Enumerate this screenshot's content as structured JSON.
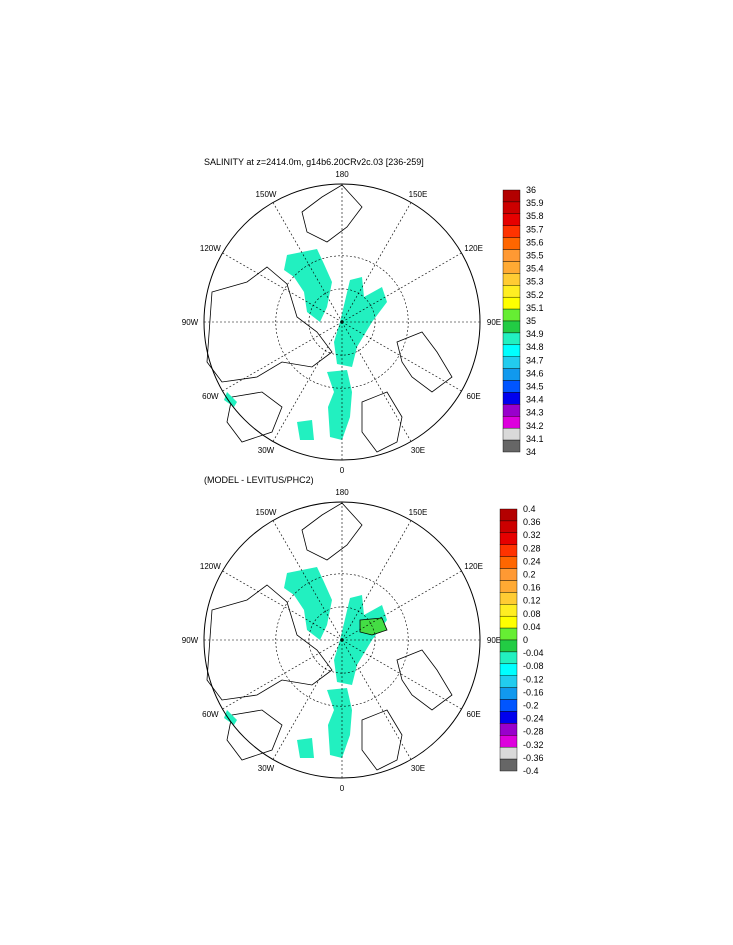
{
  "figure": {
    "panels": [
      {
        "id": "salinity",
        "title": "SALINITY at z=2414.0m, g14b6.20CRv2c.03 [236-259]",
        "projection": "north polar stereographic",
        "meridian_labels": [
          "180",
          "150E",
          "120E",
          "90E",
          "60E",
          "30E",
          "0",
          "30W",
          "60W",
          "90W",
          "120W",
          "150W"
        ],
        "colorbar": {
          "labels": [
            "36",
            "35.9",
            "35.8",
            "35.7",
            "35.6",
            "35.5",
            "35.4",
            "35.3",
            "35.2",
            "35.1",
            "35",
            "34.9",
            "34.8",
            "34.7",
            "34.6",
            "34.5",
            "34.4",
            "34.3",
            "34.2",
            "34.1",
            "34"
          ],
          "colors": [
            "#b30000",
            "#cc0000",
            "#e60000",
            "#ff3300",
            "#ff6600",
            "#ff9933",
            "#ffaa33",
            "#ffcc33",
            "#ffee22",
            "#ffff00",
            "#66ee33",
            "#22cc44",
            "#22f0c0",
            "#00ffff",
            "#22ccee",
            "#1199ee",
            "#0055ff",
            "#0000ee",
            "#9900cc",
            "#dd00dd",
            "#d9d9d9",
            "#666666"
          ]
        },
        "field_color": "#22f0c0"
      },
      {
        "id": "difference",
        "title": "(MODEL - LEVITUS/PHC2)",
        "projection": "north polar stereographic",
        "meridian_labels": [
          "180",
          "150E",
          "120E",
          "90E",
          "60E",
          "30E",
          "0",
          "30W",
          "60W",
          "90W",
          "120W",
          "150W"
        ],
        "colorbar": {
          "labels": [
            "0.4",
            "0.36",
            "0.32",
            "0.28",
            "0.24",
            "0.2",
            "0.16",
            "0.12",
            "0.08",
            "0.04",
            "0",
            "-0.04",
            "-0.08",
            "-0.12",
            "-0.16",
            "-0.2",
            "-0.24",
            "-0.28",
            "-0.32",
            "-0.36",
            "-0.4"
          ],
          "colors": [
            "#b30000",
            "#cc0000",
            "#e60000",
            "#ff3300",
            "#ff6600",
            "#ff9933",
            "#ffaa33",
            "#ffcc33",
            "#ffee22",
            "#ffff00",
            "#66ee33",
            "#22cc44",
            "#22f0c0",
            "#00ffff",
            "#22ccee",
            "#1199ee",
            "#0055ff",
            "#0000ee",
            "#9900cc",
            "#dd00dd",
            "#d9d9d9",
            "#666666"
          ]
        },
        "field_color": "#22f0c0",
        "positive_color": "#44dd44"
      }
    ]
  }
}
